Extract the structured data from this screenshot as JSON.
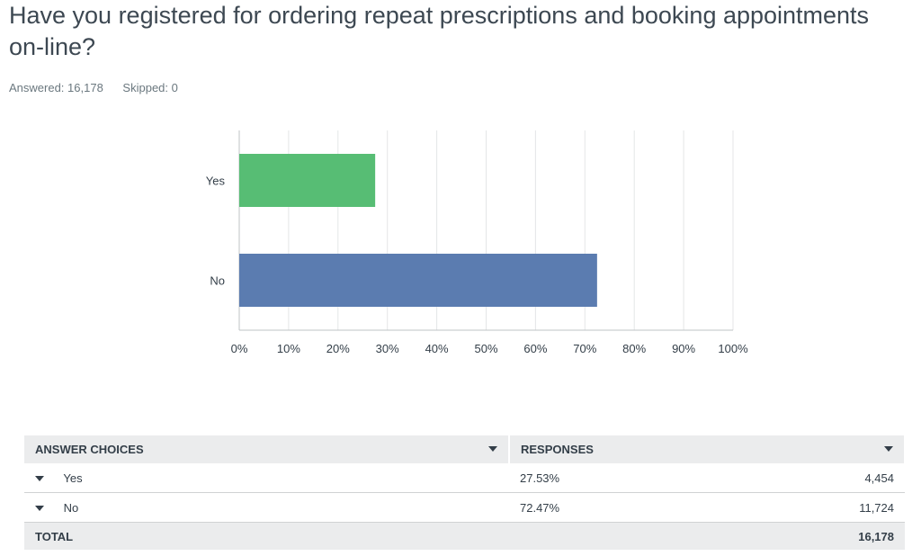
{
  "question": {
    "title": "Have you registered for ordering repeat prescriptions and booking appointments on-line?",
    "answered": "Answered: 16,178",
    "skipped": "Skipped: 0"
  },
  "chart_data": {
    "type": "bar",
    "orientation": "horizontal",
    "categories": [
      "Yes",
      "No"
    ],
    "values": [
      27.53,
      72.47
    ],
    "xlim": [
      0,
      100
    ],
    "ticks": [
      "0%",
      "10%",
      "20%",
      "30%",
      "40%",
      "50%",
      "60%",
      "70%",
      "80%",
      "90%",
      "100%"
    ],
    "colors": [
      "#57bd74",
      "#5b7cb0"
    ],
    "grid": true
  },
  "table": {
    "headers": [
      "ANSWER CHOICES",
      "RESPONSES"
    ],
    "rows": [
      {
        "choice": "Yes",
        "percent": "27.53%",
        "count": "4,454"
      },
      {
        "choice": "No",
        "percent": "72.47%",
        "count": "11,724"
      }
    ],
    "total": {
      "label": "TOTAL",
      "count": "16,178"
    }
  }
}
